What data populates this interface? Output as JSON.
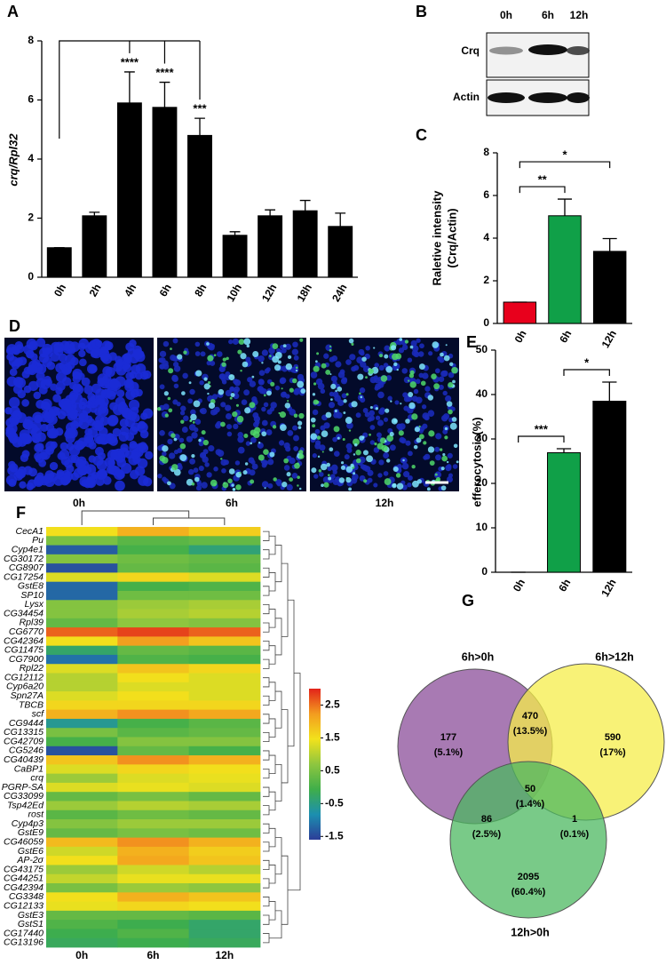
{
  "chart_data": [
    {
      "panel": "A",
      "type": "bar",
      "ylabel": "crq/Rpl32",
      "categories": [
        "0h",
        "2h",
        "4h",
        "6h",
        "8h",
        "10h",
        "12h",
        "18h",
        "24h"
      ],
      "values": [
        1.0,
        2.08,
        5.9,
        5.75,
        4.8,
        1.42,
        2.08,
        2.25,
        1.72
      ],
      "errors": [
        0,
        0.12,
        1.05,
        0.85,
        0.58,
        0.12,
        0.2,
        0.35,
        0.45
      ],
      "color": "#000000",
      "ylim": [
        0,
        8
      ],
      "yticks": [
        0,
        2,
        4,
        6,
        8
      ],
      "comparisons": [
        {
          "between": [
            "0h",
            "4h"
          ],
          "label": "****"
        },
        {
          "between": [
            "0h",
            "6h"
          ],
          "label": "****"
        },
        {
          "between": [
            "0h",
            "8h"
          ],
          "label": "***"
        }
      ]
    },
    {
      "panel": "B",
      "type": "blot",
      "lanes": [
        "0h",
        "6h",
        "12h"
      ],
      "rows": [
        "Crq",
        "Actin"
      ]
    },
    {
      "panel": "C",
      "type": "bar",
      "ylabel": [
        "Raletive intensity",
        "(Crq/Actin)"
      ],
      "categories": [
        "0h",
        "6h",
        "12h"
      ],
      "values": [
        1,
        5.05,
        3.38
      ],
      "errors": [
        0,
        0.78,
        0.6
      ],
      "colors": [
        "#e8001c",
        "#10a048",
        "#000000"
      ],
      "ylim": [
        0,
        8
      ],
      "yticks": [
        0,
        2,
        4,
        6,
        8
      ],
      "comparisons": [
        {
          "between": [
            "0h",
            "6h"
          ],
          "label": "**"
        },
        {
          "between": [
            "0h",
            "12h"
          ],
          "label": "*"
        }
      ]
    },
    {
      "panel": "D",
      "type": "image",
      "labels": [
        "0h",
        "6h",
        "12h"
      ]
    },
    {
      "panel": "E",
      "type": "bar",
      "ylabel": "efferocytosis(%)",
      "categories": [
        "0h",
        "6h",
        "12h"
      ],
      "values": [
        0,
        26.9,
        38.5
      ],
      "errors": [
        0,
        0.9,
        4.3
      ],
      "colors": [
        "#e8001c",
        "#10a048",
        "#000000"
      ],
      "ylim": [
        0,
        50
      ],
      "yticks": [
        0,
        10,
        20,
        30,
        40,
        50
      ],
      "comparisons": [
        {
          "between": [
            "0h",
            "6h"
          ],
          "label": "***"
        },
        {
          "between": [
            "6h",
            "12h"
          ],
          "label": "*"
        }
      ]
    },
    {
      "panel": "F",
      "type": "heatmap",
      "columns": [
        "0h",
        "6h",
        "12h"
      ],
      "rows": [
        "CecA1",
        "Pu",
        "Cyp4e1",
        "CG30172",
        "CG8907",
        "CG17254",
        "GstE8",
        "SP10",
        "Lysx",
        "CG34454",
        "Rpl39",
        "CG6770",
        "CG42364",
        "CG11475",
        "CG7900",
        "Rpl22",
        "CG12112",
        "Cyp6a20",
        "Spn27A",
        "TBCB",
        "scf",
        "CG9444",
        "CG13315",
        "CG42709",
        "CG5246",
        "CG40439",
        "CaBP1",
        "crq",
        "PGRP-SA",
        "CG33099",
        "Tsp42Ed",
        "rost",
        "Cyp4p3",
        "GstE9",
        "CG46059",
        "GstE6",
        "AP-2σ",
        "CG43175",
        "CG44251",
        "CG42394",
        "CG3348",
        "CG12133",
        "GstE3",
        "GstS1",
        "CG17440",
        "CG13196"
      ],
      "values": [
        [
          1.5,
          2.0,
          1.7
        ],
        [
          0.5,
          0.2,
          0.3
        ],
        [
          -1.3,
          0.0,
          -0.4
        ],
        [
          0.6,
          0.4,
          0.3
        ],
        [
          -1.4,
          0.3,
          0.2
        ],
        [
          1.3,
          1.6,
          1.3
        ],
        [
          -1.2,
          0.0,
          0.1
        ],
        [
          -1.2,
          0.4,
          0.4
        ],
        [
          0.6,
          0.8,
          0.9
        ],
        [
          0.6,
          0.9,
          1.0
        ],
        [
          0.3,
          0.7,
          0.6
        ],
        [
          2.6,
          2.8,
          2.6
        ],
        [
          1.5,
          2.2,
          1.8
        ],
        [
          -0.3,
          0.3,
          0.2
        ],
        [
          -1.1,
          0.1,
          0.0
        ],
        [
          1.3,
          1.8,
          1.6
        ],
        [
          1.0,
          1.5,
          1.3
        ],
        [
          1.0,
          1.3,
          1.3
        ],
        [
          1.3,
          1.5,
          1.3
        ],
        [
          1.6,
          1.6,
          1.6
        ],
        [
          2.0,
          2.3,
          2.1
        ],
        [
          -0.6,
          0.0,
          0.2
        ],
        [
          0.5,
          0.2,
          0.3
        ],
        [
          0.0,
          0.6,
          0.6
        ],
        [
          -1.4,
          0.3,
          0.0
        ],
        [
          1.8,
          2.3,
          2.0
        ],
        [
          1.3,
          1.6,
          1.5
        ],
        [
          0.8,
          1.3,
          1.4
        ],
        [
          1.3,
          1.4,
          1.3
        ],
        [
          0.3,
          0.5,
          0.3
        ],
        [
          0.8,
          1.0,
          0.9
        ],
        [
          0.2,
          0.4,
          0.3
        ],
        [
          0.6,
          0.8,
          0.8
        ],
        [
          0.3,
          0.5,
          0.4
        ],
        [
          1.9,
          2.3,
          2.0
        ],
        [
          1.2,
          2.0,
          1.7
        ],
        [
          1.5,
          2.1,
          1.8
        ],
        [
          0.8,
          1.2,
          1.0
        ],
        [
          1.1,
          1.4,
          1.4
        ],
        [
          0.5,
          0.8,
          0.7
        ],
        [
          1.5,
          2.0,
          1.8
        ],
        [
          1.4,
          1.6,
          1.5
        ],
        [
          0.3,
          0.3,
          0.2
        ],
        [
          0.1,
          -0.1,
          -0.3
        ],
        [
          -0.1,
          0.1,
          -0.3
        ],
        [
          -0.2,
          -0.1,
          -0.2
        ]
      ],
      "clim": [
        -1.6,
        3.0
      ],
      "colorbar_ticks": [
        2.5,
        1.5,
        0.5,
        -0.5,
        -1.5
      ],
      "colors": [
        "#2c3d98",
        "#1c8fb0",
        "#3fae4a",
        "#8ec63f",
        "#f2e21c",
        "#f39c1f",
        "#e2231a"
      ]
    },
    {
      "panel": "G",
      "type": "venn",
      "sets": [
        "6h>0h",
        "6h>12h",
        "12h>0h"
      ],
      "colors": [
        "#8b4d9a",
        "#f5ee4a",
        "#4cb860"
      ],
      "regions": [
        {
          "count": 177,
          "percent": "(5.1%)"
        },
        {
          "count": 590,
          "percent": "(17%)"
        },
        {
          "count": 2095,
          "percent": "(60.4%)"
        },
        {
          "count": 470,
          "percent": "(13.5%)"
        },
        {
          "count": 86,
          "percent": "(2.5%)"
        },
        {
          "count": 1,
          "percent": "(0.1%)"
        },
        {
          "count": 50,
          "percent": "(1.4%)"
        }
      ]
    }
  ]
}
